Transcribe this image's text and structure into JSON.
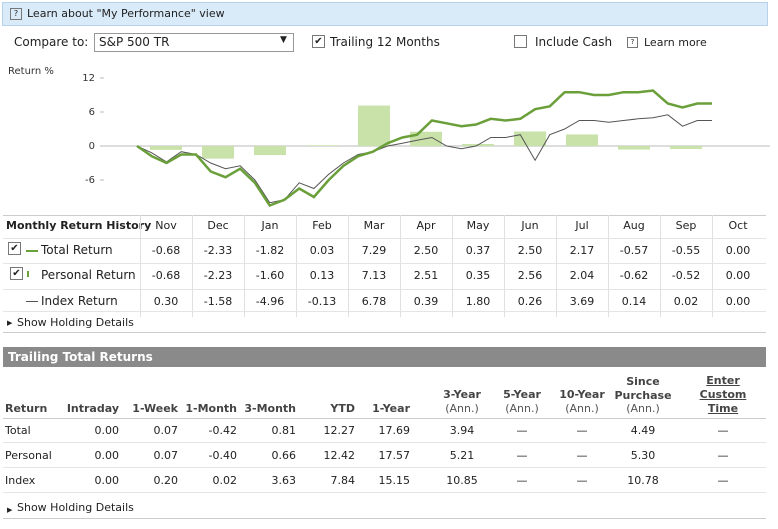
{
  "info_bar": "Learn about \"My Performance\" view",
  "controls": {
    "compare_label": "Compare to:",
    "compare_value": "S&P 500 TR",
    "trailing": "Trailing 12 Months",
    "trailing_checked": true,
    "include_cash": "Include Cash",
    "include_cash_checked": false,
    "learn_more": "Learn more"
  },
  "chart": {
    "ylabel": "Return %",
    "ylim": [
      -12,
      15
    ],
    "yticks": [
      12,
      6,
      0,
      -6
    ],
    "total_color": "#6a9f3a",
    "index_color": "#555555",
    "bar_color": "#c8e2aa",
    "total_line": [
      0,
      -1.8,
      -3,
      -1.5,
      -1.5,
      -4.5,
      -5.5,
      -4,
      -6.5,
      -10.5,
      -9.5,
      -7.5,
      -9,
      -6,
      -3.5,
      -1.8,
      -1,
      0.5,
      1.5,
      2,
      4.5,
      4,
      3.5,
      3.8,
      4.8,
      4.5,
      4.8,
      6.5,
      7,
      9.5,
      9.5,
      9,
      9,
      9.5,
      9.5,
      9.8,
      7.5,
      6.8,
      7.5,
      7.5
    ],
    "index_line": [
      0,
      -1.2,
      -2.8,
      -1,
      -1.5,
      -3,
      -4,
      -3.5,
      -6,
      -10,
      -9.5,
      -6.5,
      -7.5,
      -5,
      -3,
      -1.5,
      -1,
      0,
      0.5,
      1,
      1.5,
      0,
      -0.5,
      0,
      1.5,
      1.5,
      2,
      -2.5,
      2,
      3,
      4.5,
      4.5,
      4.2,
      4.5,
      4.8,
      5,
      5.5,
      3.5,
      4.5,
      4.5
    ]
  },
  "monthly": {
    "title": "Monthly Return History",
    "months": [
      "Nov",
      "Dec",
      "Jan",
      "Feb",
      "Mar",
      "Apr",
      "May",
      "Jun",
      "Jul",
      "Aug",
      "Sep",
      "Oct"
    ],
    "rows": [
      {
        "name": "Total Return",
        "checked": true,
        "values": [
          "-0.68",
          "-2.33",
          "-1.82",
          "0.03",
          "7.29",
          "2.50",
          "0.37",
          "2.50",
          "2.17",
          "-0.57",
          "-0.55",
          "0.00"
        ]
      },
      {
        "name": "Personal Return",
        "checked": true,
        "values": [
          "-0.68",
          "-2.23",
          "-1.60",
          "0.13",
          "7.13",
          "2.51",
          "0.35",
          "2.56",
          "2.04",
          "-0.62",
          "-0.52",
          "0.00"
        ]
      },
      {
        "name": "Index Return",
        "values": [
          "0.30",
          "-1.58",
          "-4.96",
          "-0.13",
          "6.78",
          "0.39",
          "1.80",
          "0.26",
          "3.69",
          "0.14",
          "0.02",
          "0.00"
        ]
      }
    ],
    "show_details": "Show Holding Details"
  },
  "trailing": {
    "title": "Trailing Total Returns",
    "columns": [
      {
        "label": "Return"
      },
      {
        "label": "Intraday"
      },
      {
        "label": "1-Week"
      },
      {
        "label": "1-Month"
      },
      {
        "label": "3-Month"
      },
      {
        "label": "YTD"
      },
      {
        "label": "1-Year"
      },
      {
        "label": "3-Year",
        "sub": "(Ann.)"
      },
      {
        "label": "5-Year",
        "sub": "(Ann.)"
      },
      {
        "label": "10-Year",
        "sub": "(Ann.)"
      },
      {
        "label": "Since Purchase",
        "sub": "(Ann.)"
      },
      {
        "label": "Enter Custom Time"
      }
    ],
    "rows": [
      [
        "Total",
        "0.00",
        "0.07",
        "-0.42",
        "0.81",
        "12.27",
        "17.69",
        "3.94",
        "—",
        "—",
        "4.49",
        "—"
      ],
      [
        "Personal",
        "0.00",
        "0.07",
        "-0.40",
        "0.66",
        "12.42",
        "17.57",
        "5.21",
        "—",
        "—",
        "5.30",
        "—"
      ],
      [
        "Index",
        "0.00",
        "0.20",
        "0.02",
        "3.63",
        "7.84",
        "15.15",
        "10.85",
        "—",
        "—",
        "10.78",
        "—"
      ]
    ],
    "show_details": "Show Holding Details"
  }
}
